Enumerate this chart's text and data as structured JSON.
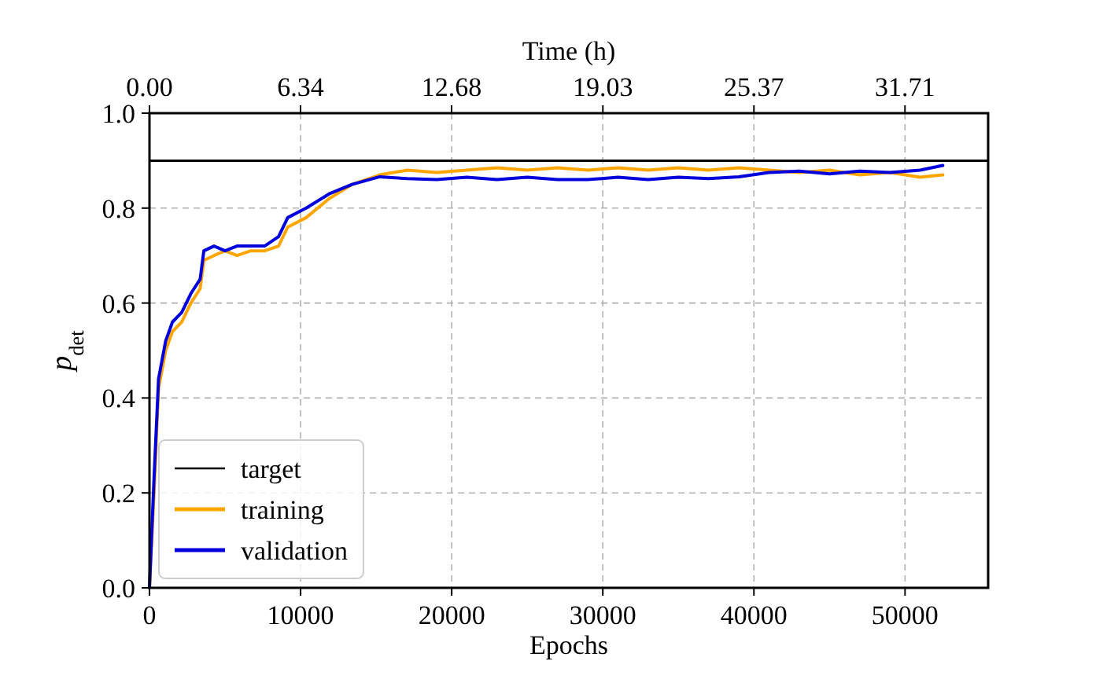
{
  "chart_data": {
    "type": "line",
    "xlabel": "Epochs",
    "ylabel": "p$_{det}$",
    "x2label": "Time (h)",
    "xlim": [
      0,
      55500
    ],
    "xticks": [
      0,
      10000,
      20000,
      30000,
      40000,
      50000
    ],
    "x2lim": [
      0,
      35.2
    ],
    "x2ticks": [
      {
        "value": 0,
        "label": "0.00"
      },
      6.34,
      12.68,
      19.03,
      25.37,
      31.71
    ],
    "ylim": [
      0,
      1
    ],
    "yticks": [
      {
        "value": 0,
        "label": "0.0"
      },
      0.2,
      0.4,
      0.6,
      0.8,
      {
        "value": 1,
        "label": "1.0"
      }
    ],
    "grid": true,
    "legend": "bottom left",
    "ref_lines": [
      {
        "axis": "y",
        "value": 0.9,
        "label": "target",
        "color": "#000000"
      }
    ],
    "series": [
      {
        "name": "training",
        "color": "#ffa500",
        "x": [
          0,
          300,
          600,
          1070,
          1520,
          2130,
          2740,
          3350,
          3600,
          4270,
          5000,
          5790,
          6700,
          7620,
          8540,
          9150,
          10370,
          11890,
          13410,
          15240,
          17070,
          19000,
          21000,
          23000,
          25000,
          27000,
          29000,
          31000,
          33000,
          35000,
          37000,
          39000,
          41000,
          43000,
          45000,
          47000,
          49000,
          51000,
          52500
        ],
        "values": [
          0,
          0.2,
          0.42,
          0.5,
          0.54,
          0.56,
          0.6,
          0.63,
          0.69,
          0.7,
          0.71,
          0.7,
          0.71,
          0.71,
          0.72,
          0.76,
          0.78,
          0.82,
          0.85,
          0.87,
          0.88,
          0.875,
          0.88,
          0.885,
          0.88,
          0.885,
          0.88,
          0.885,
          0.88,
          0.885,
          0.88,
          0.885,
          0.88,
          0.875,
          0.88,
          0.87,
          0.875,
          0.865,
          0.87
        ]
      },
      {
        "name": "validation",
        "color": "#0000dd",
        "x": [
          0,
          300,
          600,
          1070,
          1520,
          2130,
          2740,
          3350,
          3600,
          4270,
          5000,
          5790,
          6700,
          7620,
          8540,
          9150,
          10370,
          11890,
          13410,
          15240,
          17070,
          19000,
          21000,
          23000,
          25000,
          27000,
          29000,
          31000,
          33000,
          35000,
          37000,
          39000,
          41000,
          43000,
          45000,
          47000,
          49000,
          51000,
          52500
        ],
        "values": [
          0,
          0.23,
          0.44,
          0.52,
          0.56,
          0.58,
          0.62,
          0.65,
          0.71,
          0.72,
          0.71,
          0.72,
          0.72,
          0.72,
          0.74,
          0.78,
          0.8,
          0.83,
          0.85,
          0.866,
          0.862,
          0.86,
          0.865,
          0.86,
          0.865,
          0.86,
          0.86,
          0.865,
          0.86,
          0.865,
          0.862,
          0.866,
          0.875,
          0.878,
          0.872,
          0.878,
          0.875,
          0.88,
          0.89
        ]
      }
    ]
  }
}
